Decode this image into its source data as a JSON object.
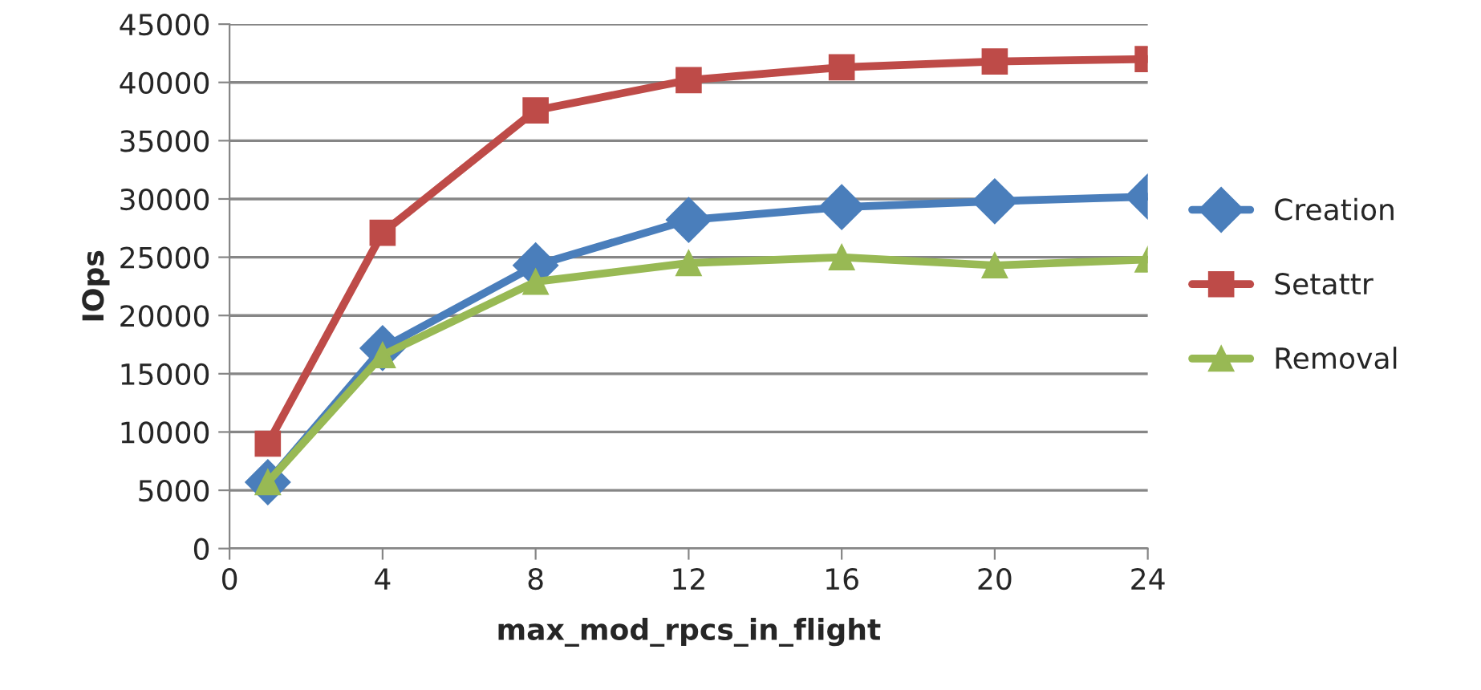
{
  "chart_data": {
    "type": "line",
    "xlabel": "max_mod_rpcs_in_flight",
    "ylabel": "IOps",
    "x": [
      1,
      4,
      8,
      12,
      16,
      20,
      24
    ],
    "series": [
      {
        "name": "Creation",
        "color": "#4a7ebb",
        "marker": "diamond",
        "values": [
          5700,
          17200,
          24300,
          28200,
          29300,
          29800,
          30200
        ]
      },
      {
        "name": "Setattr",
        "color": "#be4b48",
        "marker": "square",
        "values": [
          9000,
          27100,
          37600,
          40200,
          41300,
          41800,
          42000
        ]
      },
      {
        "name": "Removal",
        "color": "#98b954",
        "marker": "triangle",
        "values": [
          5700,
          16600,
          22900,
          24500,
          25000,
          24300,
          24800
        ]
      }
    ],
    "xlim": [
      0,
      24
    ],
    "xticks": [
      0,
      4,
      8,
      12,
      16,
      20,
      24
    ],
    "ylim": [
      0,
      45000
    ],
    "yticks": [
      0,
      5000,
      10000,
      15000,
      20000,
      25000,
      30000,
      35000,
      40000,
      45000
    ],
    "grid": "y",
    "legend": "right",
    "line_style": "solid"
  }
}
